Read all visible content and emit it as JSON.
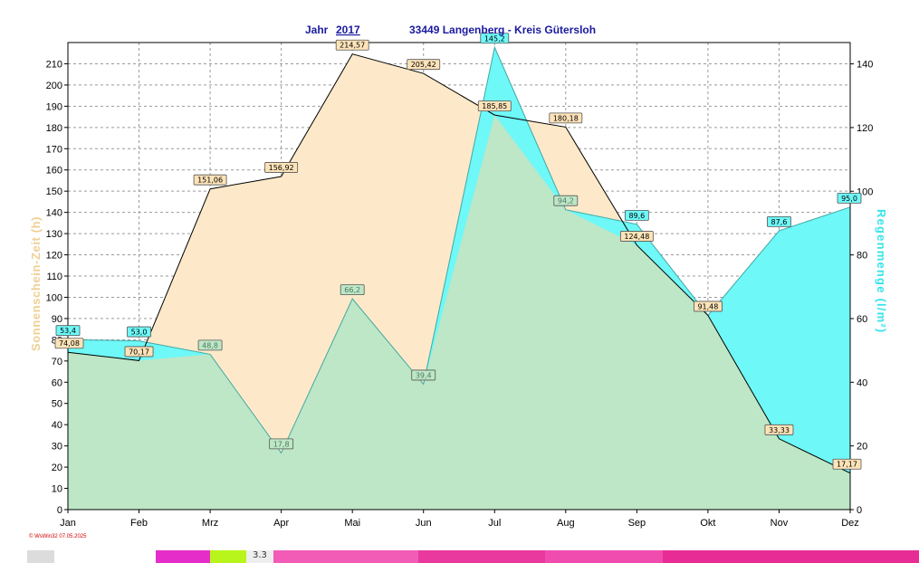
{
  "header": {
    "year_label": "Jahr",
    "year": "2017",
    "location": "33449 Langenberg - Kreis Gütersloh"
  },
  "footer": {
    "credit": "© WsWin32  07.05.2025"
  },
  "bottom_strip": {
    "label": "3.3"
  },
  "colors": {
    "sunshine_fill": "#fde9c9",
    "rain_fill": "#6ef8f8",
    "overlap_fill": "#bde7c6",
    "title_color": "#1a1aa0",
    "left_axis_title_color": "#f0cf93",
    "right_axis_title_color": "#35e4ea"
  },
  "chart_data": {
    "type": "area",
    "categories": [
      "Jan",
      "Feb",
      "Mrz",
      "Apr",
      "Mai",
      "Jun",
      "Jul",
      "Aug",
      "Sep",
      "Okt",
      "Nov",
      "Dez"
    ],
    "series": [
      {
        "name": "Sonnenschein-Zeit",
        "axis": "left",
        "unit": "h",
        "values": [
          74.08,
          70.17,
          151.06,
          156.92,
          214.57,
          205.42,
          185.85,
          180.18,
          124.48,
          91.48,
          33.33,
          17.17
        ],
        "labels": [
          "74,08",
          "70,17",
          "151,06",
          "156,92",
          "214,57",
          "205,42",
          "185,85",
          "180,18",
          "124,48",
          "91,48",
          "33,33",
          "17,17"
        ]
      },
      {
        "name": "Regenmenge",
        "axis": "right",
        "unit": "l/m²",
        "values": [
          53.4,
          53.0,
          48.8,
          17.8,
          66.2,
          39.4,
          145.2,
          94.2,
          89.6,
          61.0,
          87.6,
          95.0
        ],
        "labels": [
          "53,4",
          "53,0",
          "48,8",
          "17,8",
          "66,2",
          "39,4",
          "145,2",
          "94,2",
          "89,6",
          null,
          "87,6",
          "95,0"
        ]
      }
    ],
    "left_axis": {
      "title": "Sonnenschein-Zeit  (h)",
      "ylim": [
        0,
        220
      ],
      "ticks": [
        0,
        10,
        20,
        30,
        40,
        50,
        60,
        70,
        80,
        90,
        100,
        110,
        120,
        130,
        140,
        150,
        160,
        170,
        180,
        190,
        200,
        210
      ]
    },
    "right_axis": {
      "title": "Regenmenge   (l/m²)",
      "ylim": [
        0,
        146.7
      ],
      "ticks": [
        0,
        20,
        40,
        60,
        80,
        100,
        120,
        140
      ]
    },
    "grid": true
  }
}
